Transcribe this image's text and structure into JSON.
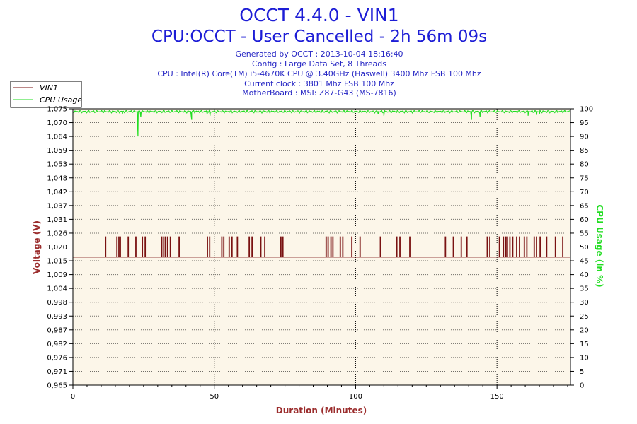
{
  "header": {
    "title": "OCCT 4.4.0 - VIN1",
    "subtitle": "CPU:OCCT - User Cancelled - 2h 56m 09s",
    "info_lines": [
      "Generated by OCCT : 2013-10-04 18:16:40",
      "Config : Large Data Set, 8 Threads",
      "CPU : Intel(R) Core(TM) i5-4670K CPU @ 3.40GHz (Haswell) 3400 Mhz FSB 100 Mhz",
      "Current clock : 3801 Mhz FSB 100 Mhz",
      "MotherBoard : MSI: Z87-G43 (MS-7816)"
    ]
  },
  "colors": {
    "vin1": "#7a1212",
    "cpu": "#22dd22",
    "plot_bg": "#fcf6e9",
    "grid": "#000000"
  },
  "chart_data": {
    "type": "line",
    "title": "OCCT 4.4.0 - VIN1",
    "xlabel": "Duration (Minutes)",
    "ylabel_left": "Voltage (V)",
    "ylabel_right": "CPU Usage (in %)",
    "xlim": [
      0,
      176
    ],
    "ylim_left": [
      0.965,
      1.075
    ],
    "ylim_right": [
      0,
      100
    ],
    "x_ticks": [
      "0",
      "50",
      "100",
      "150"
    ],
    "x_tick_values": [
      0,
      50,
      100,
      150
    ],
    "y_left_ticks": [
      "0,965",
      "0,971",
      "0,976",
      "0,982",
      "0,987",
      "0,993",
      "0,998",
      "1,004",
      "1,009",
      "1,015",
      "1,020",
      "1,026",
      "1,031",
      "1,037",
      "1,042",
      "1,048",
      "1,053",
      "1,059",
      "1,064",
      "1,070",
      "1,075"
    ],
    "y_right_ticks": [
      "0",
      "5",
      "10",
      "15",
      "20",
      "25",
      "30",
      "35",
      "40",
      "45",
      "50",
      "55",
      "60",
      "65",
      "70",
      "75",
      "80",
      "85",
      "90",
      "95",
      "100"
    ],
    "grid": "dotted, vertical lines at x ticks",
    "legend_position": "top-left",
    "series": [
      {
        "name": "VIN1",
        "axis": "left",
        "baseline": 1.016,
        "spike_value": 1.024,
        "spike_x": [
          11.5,
          15.5,
          16.2,
          16.7,
          19.5,
          22.2,
          24.5,
          25.5,
          31.3,
          31.9,
          32.6,
          33.4,
          34.4,
          37.5,
          47.5,
          48.3,
          52.6,
          53.3,
          55.2,
          56.2,
          58.1,
          62.3,
          63.3,
          66.4,
          67.8,
          73.5,
          74.2,
          89.5,
          90.2,
          91.2,
          91.9,
          94.5,
          95.4,
          98.6,
          101.5,
          108.7,
          114.5,
          115.6,
          119.1,
          131.7,
          134.5,
          137.3,
          139.3,
          146.5,
          147.4,
          150.8,
          152.2,
          153.1,
          153.6,
          154.5,
          155.5,
          156.9,
          157.9,
          159.6,
          160.5,
          163.1,
          163.9,
          165.2,
          167.5,
          170.6,
          173.2
        ]
      },
      {
        "name": "CPU Usage",
        "axis": "right",
        "baseline": 99,
        "dips": [
          [
            17.5,
            98
          ],
          [
            23,
            90
          ],
          [
            24,
            97
          ],
          [
            42,
            96
          ],
          [
            47.5,
            98
          ],
          [
            48.5,
            97.5
          ],
          [
            108,
            98
          ],
          [
            110,
            97.5
          ],
          [
            141,
            96
          ],
          [
            144,
            97
          ],
          [
            161,
            97.5
          ],
          [
            164,
            97.8
          ],
          [
            165,
            98
          ]
        ]
      }
    ]
  }
}
